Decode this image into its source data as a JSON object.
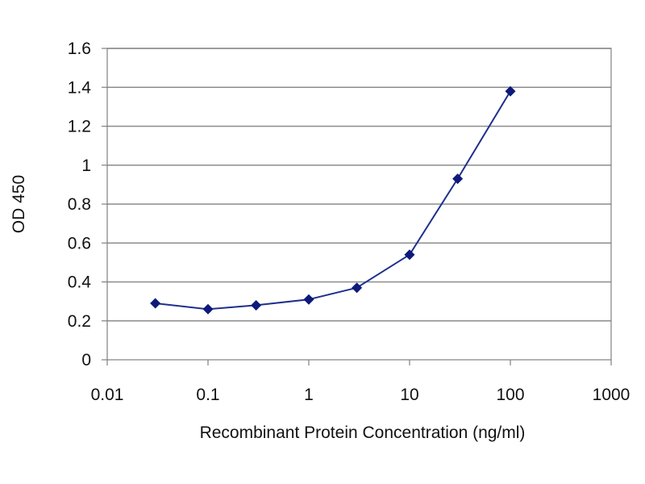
{
  "chart_data": {
    "type": "line",
    "xlabel": "Recombinant Protein Concentration (ng/ml)",
    "ylabel": "OD 450",
    "xscale": "log",
    "xlim": [
      0.01,
      1000
    ],
    "ylim": [
      0,
      1.6
    ],
    "xticks": [
      0.01,
      0.1,
      1,
      10,
      100,
      1000
    ],
    "xtick_labels": [
      "0.01",
      "0.1",
      "1",
      "10",
      "100",
      "1000"
    ],
    "yticks": [
      0,
      0.2,
      0.4,
      0.6,
      0.8,
      1,
      1.2,
      1.4,
      1.6
    ],
    "ytick_labels": [
      "0",
      "0.2",
      "0.4",
      "0.6",
      "0.8",
      "1",
      "1.2",
      "1.4",
      "1.6"
    ],
    "grid": "horizontal",
    "legend": "none",
    "series": [
      {
        "x": [
          0.03,
          0.1,
          0.3,
          1,
          3,
          10,
          30,
          100
        ],
        "y": [
          0.29,
          0.26,
          0.28,
          0.31,
          0.37,
          0.54,
          0.93,
          1.38
        ],
        "color": "#1f2f8c",
        "marker": "diamond"
      }
    ],
    "colors": {
      "line": "#1f2f8c",
      "marker": "#0d1a7a",
      "grid": "#8c8c8c",
      "axis": "#808080"
    }
  }
}
